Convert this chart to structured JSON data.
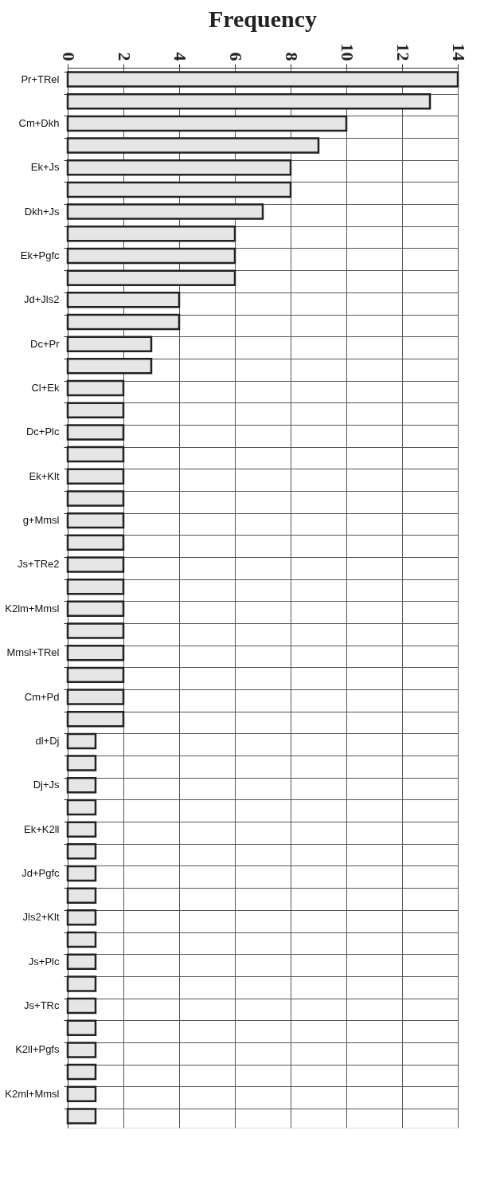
{
  "chart_data": {
    "type": "bar",
    "orientation": "horizontal",
    "title": "Frequency",
    "categories": [
      "Pr+TRel",
      null,
      "Cm+Dkh",
      null,
      "Ek+Js",
      null,
      "Dkh+Js",
      null,
      "Ek+Pgfc",
      null,
      "Jd+Jls2",
      null,
      "Dc+Pr",
      null,
      "Cl+Ek",
      null,
      "Dc+Plc",
      null,
      "Ek+Klt",
      null,
      "g+Mmsl",
      null,
      "Js+TRe2",
      null,
      "K2lm+Mmsl",
      null,
      "Mmsl+TRel",
      null,
      "Cm+Pd",
      null,
      "dl+Dj",
      null,
      "Dj+Js",
      null,
      "Ek+K2ll",
      null,
      "Jd+Pgfc",
      null,
      "Jls2+Klt",
      null,
      "Js+Plc",
      null,
      "Js+TRc",
      null,
      "K2ll+Pgfs",
      null,
      "K2ml+Mmsl",
      null
    ],
    "values": [
      14,
      13,
      10,
      9,
      8,
      8,
      7,
      6,
      6,
      6,
      4,
      4,
      3,
      3,
      2,
      2,
      2,
      2,
      2,
      2,
      2,
      2,
      2,
      2,
      2,
      2,
      2,
      2,
      2,
      2,
      1,
      1,
      1,
      1,
      1,
      1,
      1,
      1,
      1,
      1,
      1,
      1,
      1,
      1,
      1,
      1,
      1,
      1
    ],
    "color": "#e6e6e6",
    "xlim": [
      0,
      14
    ],
    "xticks": [
      0,
      2,
      4,
      6,
      8,
      10,
      12,
      14
    ],
    "grid": true
  }
}
